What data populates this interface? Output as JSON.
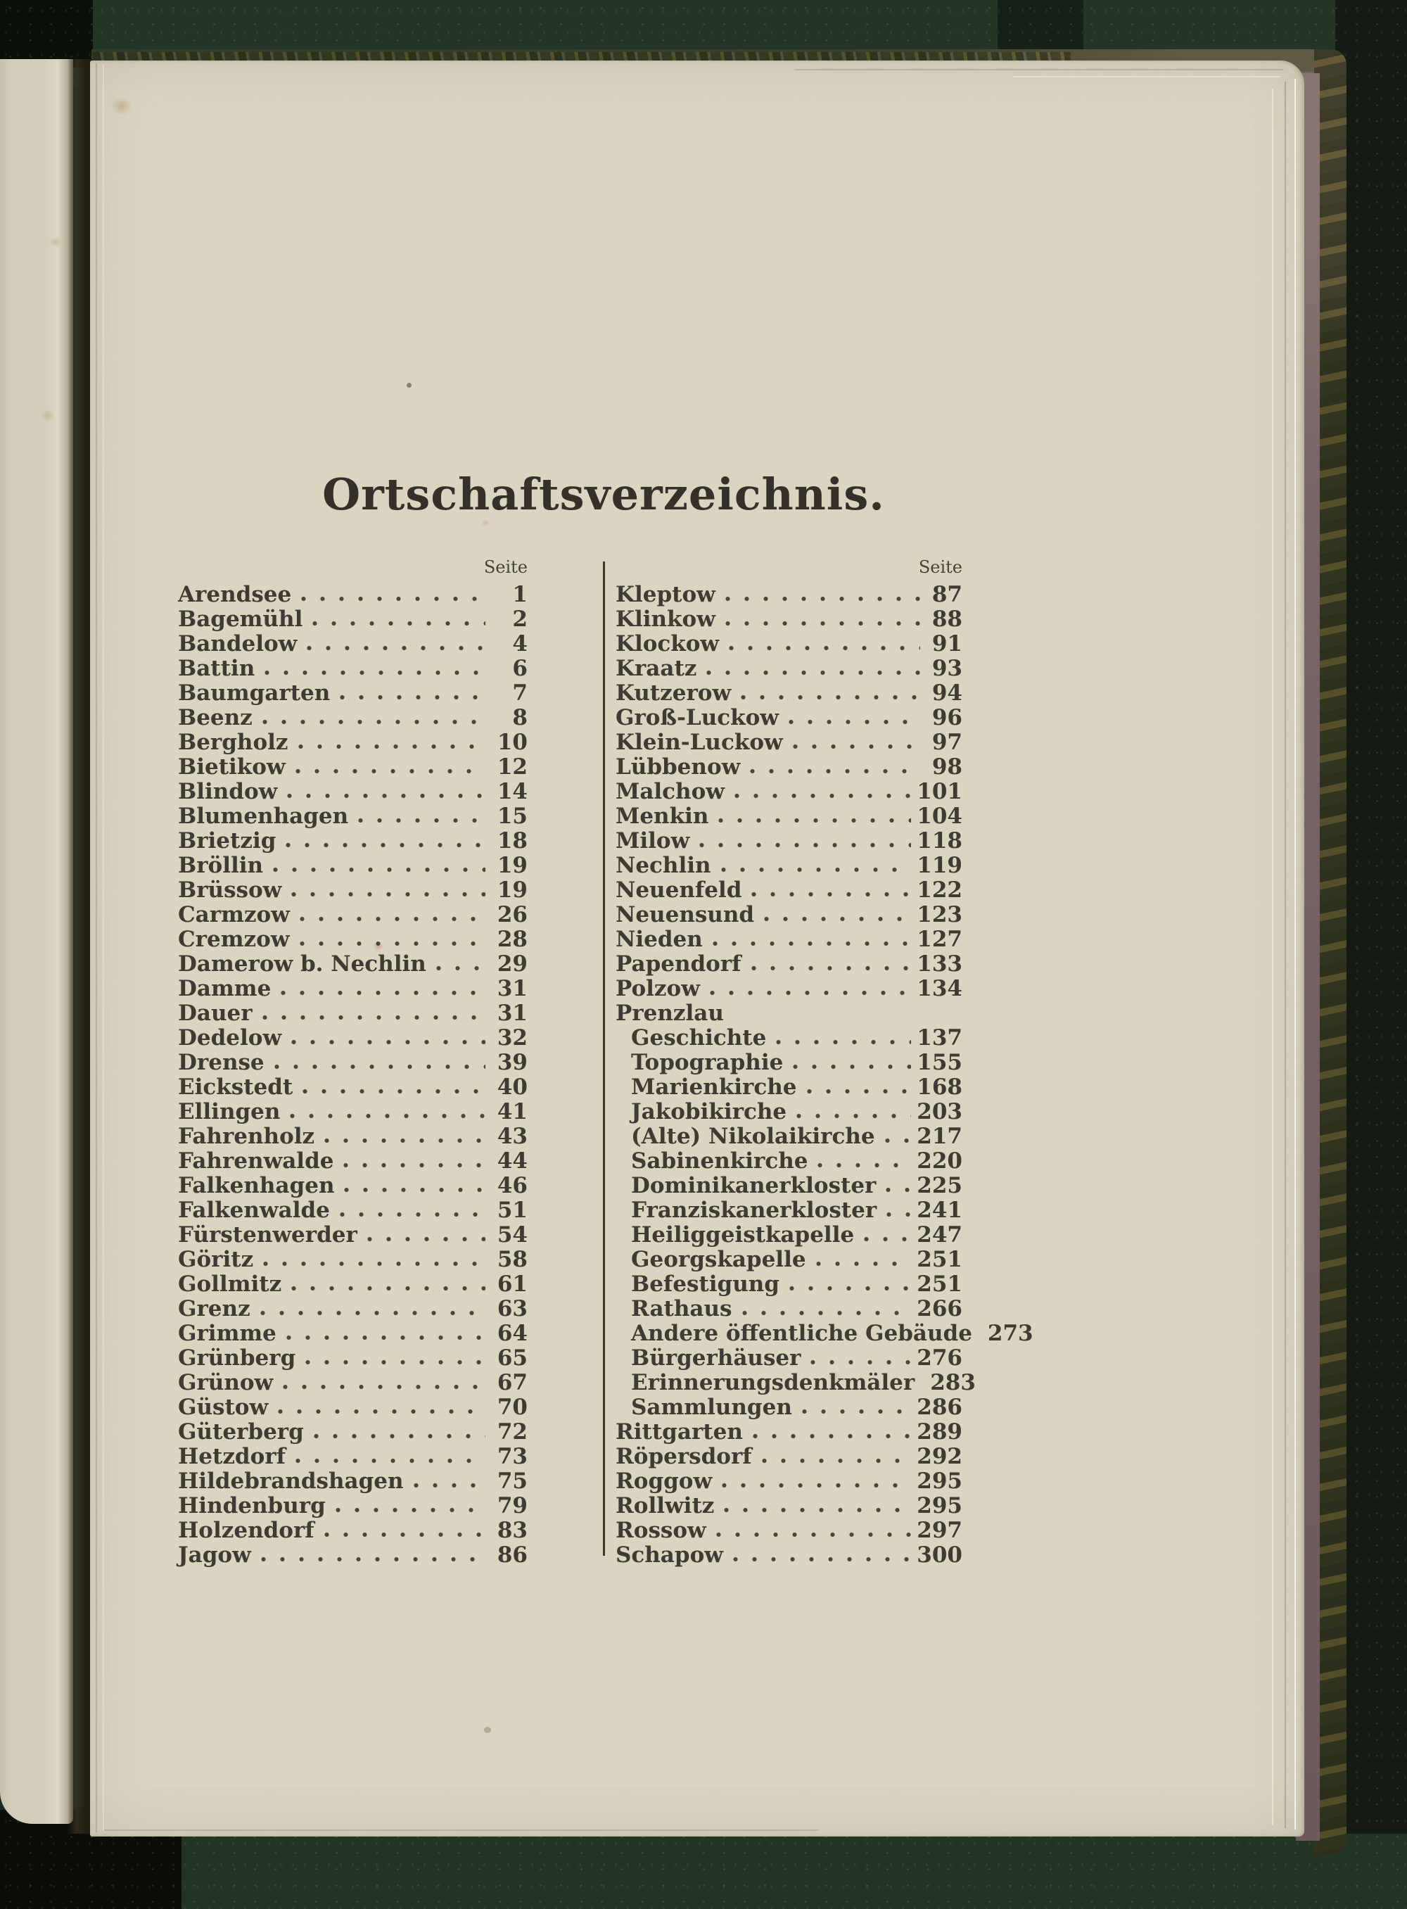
{
  "toc": {
    "title": "Ortschaftsverzeichnis.",
    "page_label": "Seite",
    "columns": {
      "left": [
        {
          "label": "Arendsee",
          "page": "1"
        },
        {
          "label": "Bagemühl",
          "page": "2"
        },
        {
          "label": "Bandelow",
          "page": "4"
        },
        {
          "label": "Battin",
          "page": "6"
        },
        {
          "label": "Baumgarten",
          "page": "7"
        },
        {
          "label": "Beenz",
          "page": "8"
        },
        {
          "label": "Bergholz",
          "page": "10"
        },
        {
          "label": "Bietikow",
          "page": "12"
        },
        {
          "label": "Blindow",
          "page": "14"
        },
        {
          "label": "Blumenhagen",
          "page": "15"
        },
        {
          "label": "Brietzig",
          "page": "18"
        },
        {
          "label": "Bröllin",
          "page": "19"
        },
        {
          "label": "Brüssow",
          "page": "19"
        },
        {
          "label": "Carmzow",
          "page": "26"
        },
        {
          "label": "Cremzow",
          "page": "28"
        },
        {
          "label": "Damerow b. Nechlin",
          "page": "29"
        },
        {
          "label": "Damme",
          "page": "31"
        },
        {
          "label": "Dauer",
          "page": "31"
        },
        {
          "label": "Dedelow",
          "page": "32"
        },
        {
          "label": "Drense",
          "page": "39"
        },
        {
          "label": "Eickstedt",
          "page": "40"
        },
        {
          "label": "Ellingen",
          "page": "41"
        },
        {
          "label": "Fahrenholz",
          "page": "43"
        },
        {
          "label": "Fahrenwalde",
          "page": "44"
        },
        {
          "label": "Falkenhagen",
          "page": "46"
        },
        {
          "label": "Falkenwalde",
          "page": "51"
        },
        {
          "label": "Fürstenwerder",
          "page": "54"
        },
        {
          "label": "Göritz",
          "page": "58"
        },
        {
          "label": "Gollmitz",
          "page": "61"
        },
        {
          "label": "Grenz",
          "page": "63"
        },
        {
          "label": "Grimme",
          "page": "64"
        },
        {
          "label": "Grünberg",
          "page": "65"
        },
        {
          "label": "Grünow",
          "page": "67"
        },
        {
          "label": "Güstow",
          "page": "70"
        },
        {
          "label": "Güterberg",
          "page": "72"
        },
        {
          "label": "Hetzdorf",
          "page": "73"
        },
        {
          "label": "Hildebrandshagen",
          "page": "75"
        },
        {
          "label": "Hindenburg",
          "page": "79"
        },
        {
          "label": "Holzendorf",
          "page": "83"
        },
        {
          "label": "Jagow",
          "page": "86"
        }
      ],
      "right": [
        {
          "label": "Kleptow",
          "page": "87"
        },
        {
          "label": "Klinkow",
          "page": "88"
        },
        {
          "label": "Klockow",
          "page": "91"
        },
        {
          "label": "Kraatz",
          "page": "93"
        },
        {
          "label": "Kutzerow",
          "page": "94"
        },
        {
          "label": "Groß-Luckow",
          "page": "96"
        },
        {
          "label": "Klein-Luckow",
          "page": "97"
        },
        {
          "label": "Lübbenow",
          "page": "98"
        },
        {
          "label": "Malchow",
          "page": "101"
        },
        {
          "label": "Menkin",
          "page": "104"
        },
        {
          "label": "Milow",
          "page": "118"
        },
        {
          "label": "Nechlin",
          "page": "119"
        },
        {
          "label": "Neuenfeld",
          "page": "122"
        },
        {
          "label": "Neuensund",
          "page": "123"
        },
        {
          "label": "Nieden",
          "page": "127"
        },
        {
          "label": "Papendorf",
          "page": "133"
        },
        {
          "label": "Polzow",
          "page": "134"
        },
        {
          "label": "Prenzlau",
          "header": true
        },
        {
          "label": "Geschichte",
          "page": "137",
          "indent": true
        },
        {
          "label": "Topographie",
          "page": "155",
          "indent": true
        },
        {
          "label": "Marienkirche",
          "page": "168",
          "indent": true
        },
        {
          "label": "Jakobikirche",
          "page": "203",
          "indent": true
        },
        {
          "label": "(Alte) Nikolaikirche",
          "page": "217",
          "indent": true
        },
        {
          "label": "Sabinenkirche",
          "page": "220",
          "indent": true
        },
        {
          "label": "Dominikanerkloster",
          "page": "225",
          "indent": true
        },
        {
          "label": "Franziskanerkloster",
          "page": "241",
          "indent": true
        },
        {
          "label": "Heiliggeistkapelle",
          "page": "247",
          "indent": true
        },
        {
          "label": "Georgskapelle",
          "page": "251",
          "indent": true
        },
        {
          "label": "Befestigung",
          "page": "251",
          "indent": true
        },
        {
          "label": "Rathaus",
          "page": "266",
          "indent": true
        },
        {
          "label": "Andere öffentliche Gebäude",
          "page": "273",
          "indent": true
        },
        {
          "label": "Bürgerhäuser",
          "page": "276",
          "indent": true
        },
        {
          "label": "Erinnerungsdenkmäler",
          "page": "283",
          "indent": true
        },
        {
          "label": "Sammlungen",
          "page": "286",
          "indent": true
        },
        {
          "label": "Rittgarten",
          "page": "289"
        },
        {
          "label": "Röpersdorf",
          "page": "292"
        },
        {
          "label": "Roggow",
          "page": "295"
        },
        {
          "label": "Rollwitz",
          "page": "295"
        },
        {
          "label": "Rossow",
          "page": "297"
        },
        {
          "label": "Schapow",
          "page": "300"
        }
      ]
    }
  },
  "colors": {
    "paper": "#d9d5c1",
    "ink": "#3e3c32",
    "cover_green": "#223527",
    "cover_cloth": "#5f5b44",
    "liner_purple": "#7a6565",
    "scan_black": "#0b100b"
  }
}
